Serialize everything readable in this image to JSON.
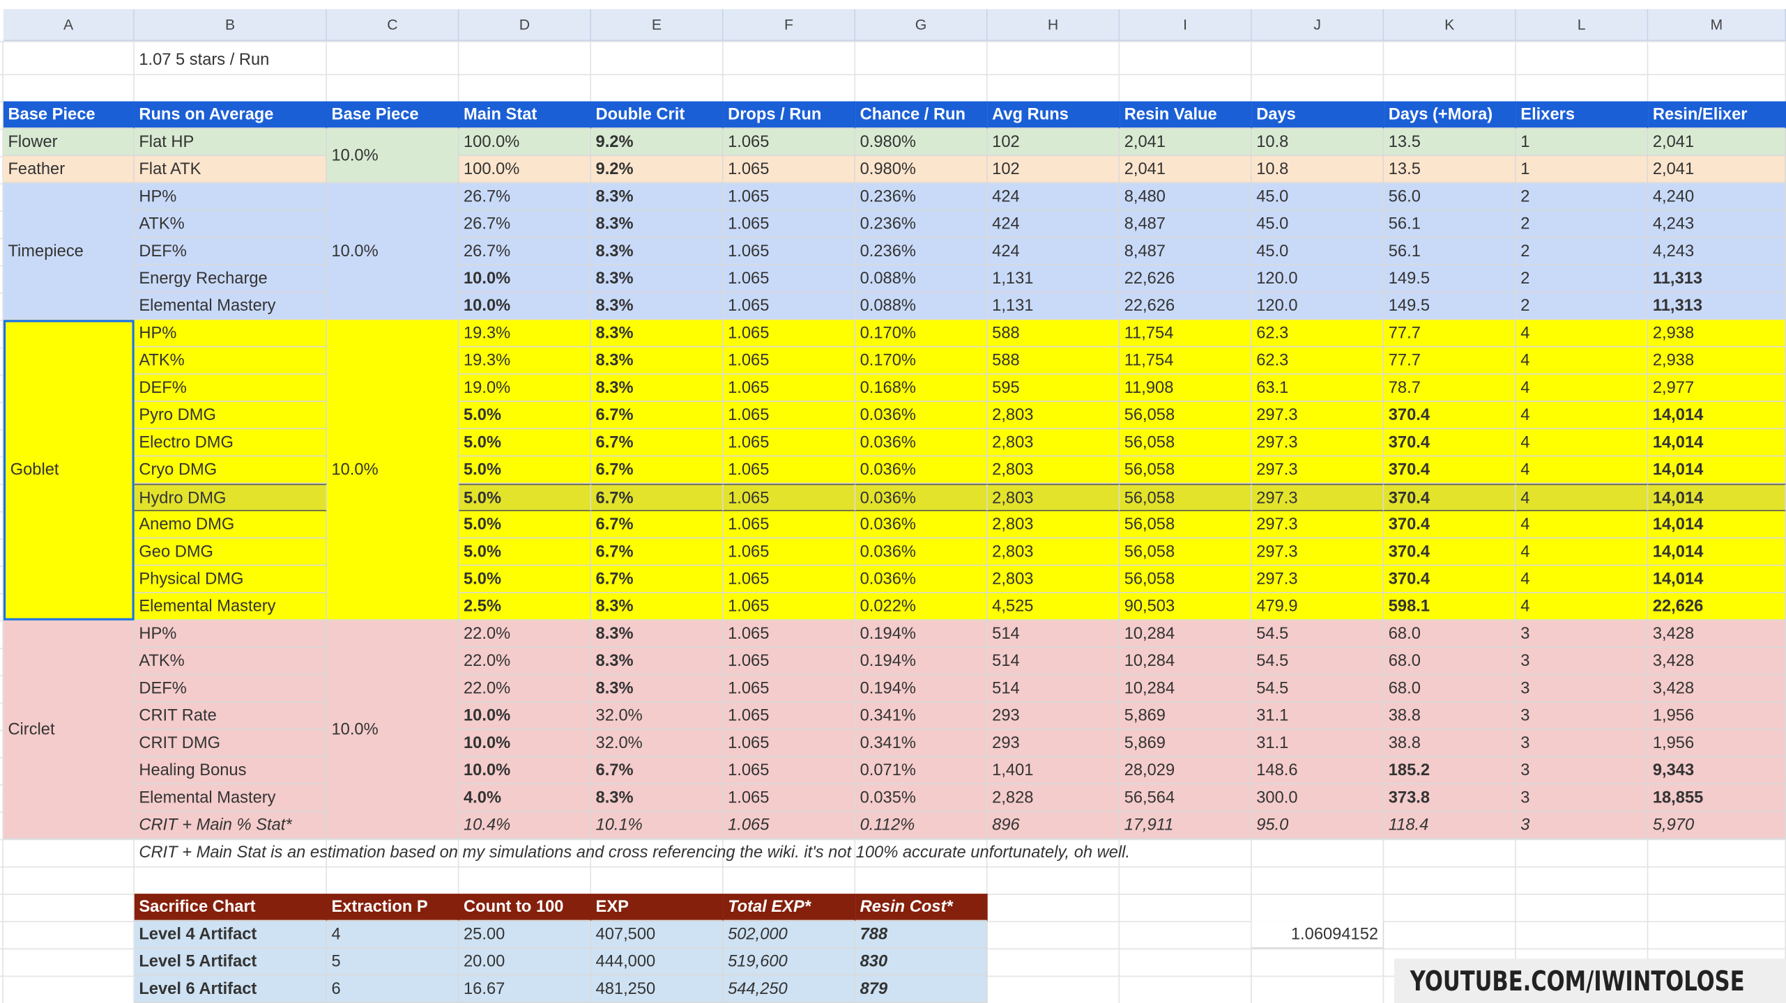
{
  "column_letters": [
    "A",
    "B",
    "C",
    "D",
    "E",
    "F",
    "G",
    "H",
    "I",
    "J",
    "K",
    "L",
    "M"
  ],
  "note_top": "1.07 5 stars / Run",
  "main_table": {
    "header": [
      "Base Piece",
      "Runs on Average",
      "Base Piece",
      "Main Stat",
      "Double Crit",
      "Drops / Run",
      "Chance / Run",
      "Avg Runs",
      "Resin Value",
      "Days",
      "Days (+Mora)",
      "Elixers",
      "Resin/Elixer"
    ],
    "rows": [
      [
        "Flower",
        "Flat HP",
        "10.0%",
        "100.0%",
        "9.2%",
        "1.065",
        "0.980%",
        "102",
        "2,041",
        "10.8",
        "13.5",
        "1",
        "2,041"
      ],
      [
        "Feather",
        "Flat ATK",
        null,
        "100.0%",
        "9.2%",
        "1.065",
        "0.980%",
        "102",
        "2,041",
        "10.8",
        "13.5",
        "1",
        "2,041"
      ],
      [
        "Timepiece",
        "HP%",
        "10.0%",
        "26.7%",
        "8.3%",
        "1.065",
        "0.236%",
        "424",
        "8,480",
        "45.0",
        "56.0",
        "2",
        "4,240"
      ],
      [
        null,
        "ATK%",
        null,
        "26.7%",
        "8.3%",
        "1.065",
        "0.236%",
        "424",
        "8,487",
        "45.0",
        "56.1",
        "2",
        "4,243"
      ],
      [
        null,
        "DEF%",
        null,
        "26.7%",
        "8.3%",
        "1.065",
        "0.236%",
        "424",
        "8,487",
        "45.0",
        "56.1",
        "2",
        "4,243"
      ],
      [
        null,
        "Energy Recharge",
        null,
        "10.0%",
        "8.3%",
        "1.065",
        "0.088%",
        "1,131",
        "22,626",
        "120.0",
        "149.5",
        "2",
        "11,313"
      ],
      [
        null,
        "Elemental Mastery",
        null,
        "10.0%",
        "8.3%",
        "1.065",
        "0.088%",
        "1,131",
        "22,626",
        "120.0",
        "149.5",
        "2",
        "11,313"
      ],
      [
        "Goblet",
        "HP%",
        "10.0%",
        "19.3%",
        "8.3%",
        "1.065",
        "0.170%",
        "588",
        "11,754",
        "62.3",
        "77.7",
        "4",
        "2,938"
      ],
      [
        null,
        "ATK%",
        null,
        "19.3%",
        "8.3%",
        "1.065",
        "0.170%",
        "588",
        "11,754",
        "62.3",
        "77.7",
        "4",
        "2,938"
      ],
      [
        null,
        "DEF%",
        null,
        "19.0%",
        "8.3%",
        "1.065",
        "0.168%",
        "595",
        "11,908",
        "63.1",
        "78.7",
        "4",
        "2,977"
      ],
      [
        null,
        "Pyro DMG",
        null,
        "5.0%",
        "6.7%",
        "1.065",
        "0.036%",
        "2,803",
        "56,058",
        "297.3",
        "370.4",
        "4",
        "14,014"
      ],
      [
        null,
        "Electro DMG",
        null,
        "5.0%",
        "6.7%",
        "1.065",
        "0.036%",
        "2,803",
        "56,058",
        "297.3",
        "370.4",
        "4",
        "14,014"
      ],
      [
        null,
        "Cryo DMG",
        null,
        "5.0%",
        "6.7%",
        "1.065",
        "0.036%",
        "2,803",
        "56,058",
        "297.3",
        "370.4",
        "4",
        "14,014"
      ],
      [
        null,
        "Hydro DMG",
        null,
        "5.0%",
        "6.7%",
        "1.065",
        "0.036%",
        "2,803",
        "56,058",
        "297.3",
        "370.4",
        "4",
        "14,014"
      ],
      [
        null,
        "Anemo DMG",
        null,
        "5.0%",
        "6.7%",
        "1.065",
        "0.036%",
        "2,803",
        "56,058",
        "297.3",
        "370.4",
        "4",
        "14,014"
      ],
      [
        null,
        "Geo DMG",
        null,
        "5.0%",
        "6.7%",
        "1.065",
        "0.036%",
        "2,803",
        "56,058",
        "297.3",
        "370.4",
        "4",
        "14,014"
      ],
      [
        null,
        "Physical DMG",
        null,
        "5.0%",
        "6.7%",
        "1.065",
        "0.036%",
        "2,803",
        "56,058",
        "297.3",
        "370.4",
        "4",
        "14,014"
      ],
      [
        null,
        "Elemental Mastery",
        null,
        "2.5%",
        "8.3%",
        "1.065",
        "0.022%",
        "4,525",
        "90,503",
        "479.9",
        "598.1",
        "4",
        "22,626"
      ],
      [
        "Circlet",
        "HP%",
        "10.0%",
        "22.0%",
        "8.3%",
        "1.065",
        "0.194%",
        "514",
        "10,284",
        "54.5",
        "68.0",
        "3",
        "3,428"
      ],
      [
        null,
        "ATK%",
        null,
        "22.0%",
        "8.3%",
        "1.065",
        "0.194%",
        "514",
        "10,284",
        "54.5",
        "68.0",
        "3",
        "3,428"
      ],
      [
        null,
        "DEF%",
        null,
        "22.0%",
        "8.3%",
        "1.065",
        "0.194%",
        "514",
        "10,284",
        "54.5",
        "68.0",
        "3",
        "3,428"
      ],
      [
        null,
        "CRIT Rate",
        null,
        "10.0%",
        "32.0%",
        "1.065",
        "0.341%",
        "293",
        "5,869",
        "31.1",
        "38.8",
        "3",
        "1,956"
      ],
      [
        null,
        "CRIT DMG",
        null,
        "10.0%",
        "32.0%",
        "1.065",
        "0.341%",
        "293",
        "5,869",
        "31.1",
        "38.8",
        "3",
        "1,956"
      ],
      [
        null,
        "Healing Bonus",
        null,
        "10.0%",
        "6.7%",
        "1.065",
        "0.071%",
        "1,401",
        "28,029",
        "148.6",
        "185.2",
        "3",
        "9,343"
      ],
      [
        null,
        "Elemental Mastery",
        null,
        "4.0%",
        "8.3%",
        "1.065",
        "0.035%",
        "2,828",
        "56,564",
        "300.0",
        "373.8",
        "3",
        "18,855"
      ],
      [
        null,
        "CRIT + Main % Stat*",
        null,
        "10.4%",
        "10.1%",
        "1.065",
        "0.112%",
        "896",
        "17,911",
        "95.0",
        "118.4",
        "3",
        "5,970"
      ]
    ]
  },
  "footnote": "CRIT + Main Stat is an estimation based on my simulations and cross referencing the wiki. it's not 100% accurate unfortunately, oh well.",
  "sacrifice_table": {
    "header": [
      "Sacrifice Chart",
      "Extraction P",
      "Count to 100",
      "EXP",
      "Total EXP*",
      "Resin Cost*"
    ],
    "rows": [
      [
        "Level 4 Artifact",
        "4",
        "25.00",
        "407,500",
        "502,000",
        "788"
      ],
      [
        "Level 5 Artifact",
        "5",
        "20.00",
        "444,000",
        "519,600",
        "830"
      ],
      [
        "Level 6 Artifact",
        "6",
        "16.67",
        "481,250",
        "544,250",
        "879"
      ]
    ]
  },
  "side_value": "1.06094152",
  "watermark": "YOUTUBE.COM/IWINTOLOSE"
}
